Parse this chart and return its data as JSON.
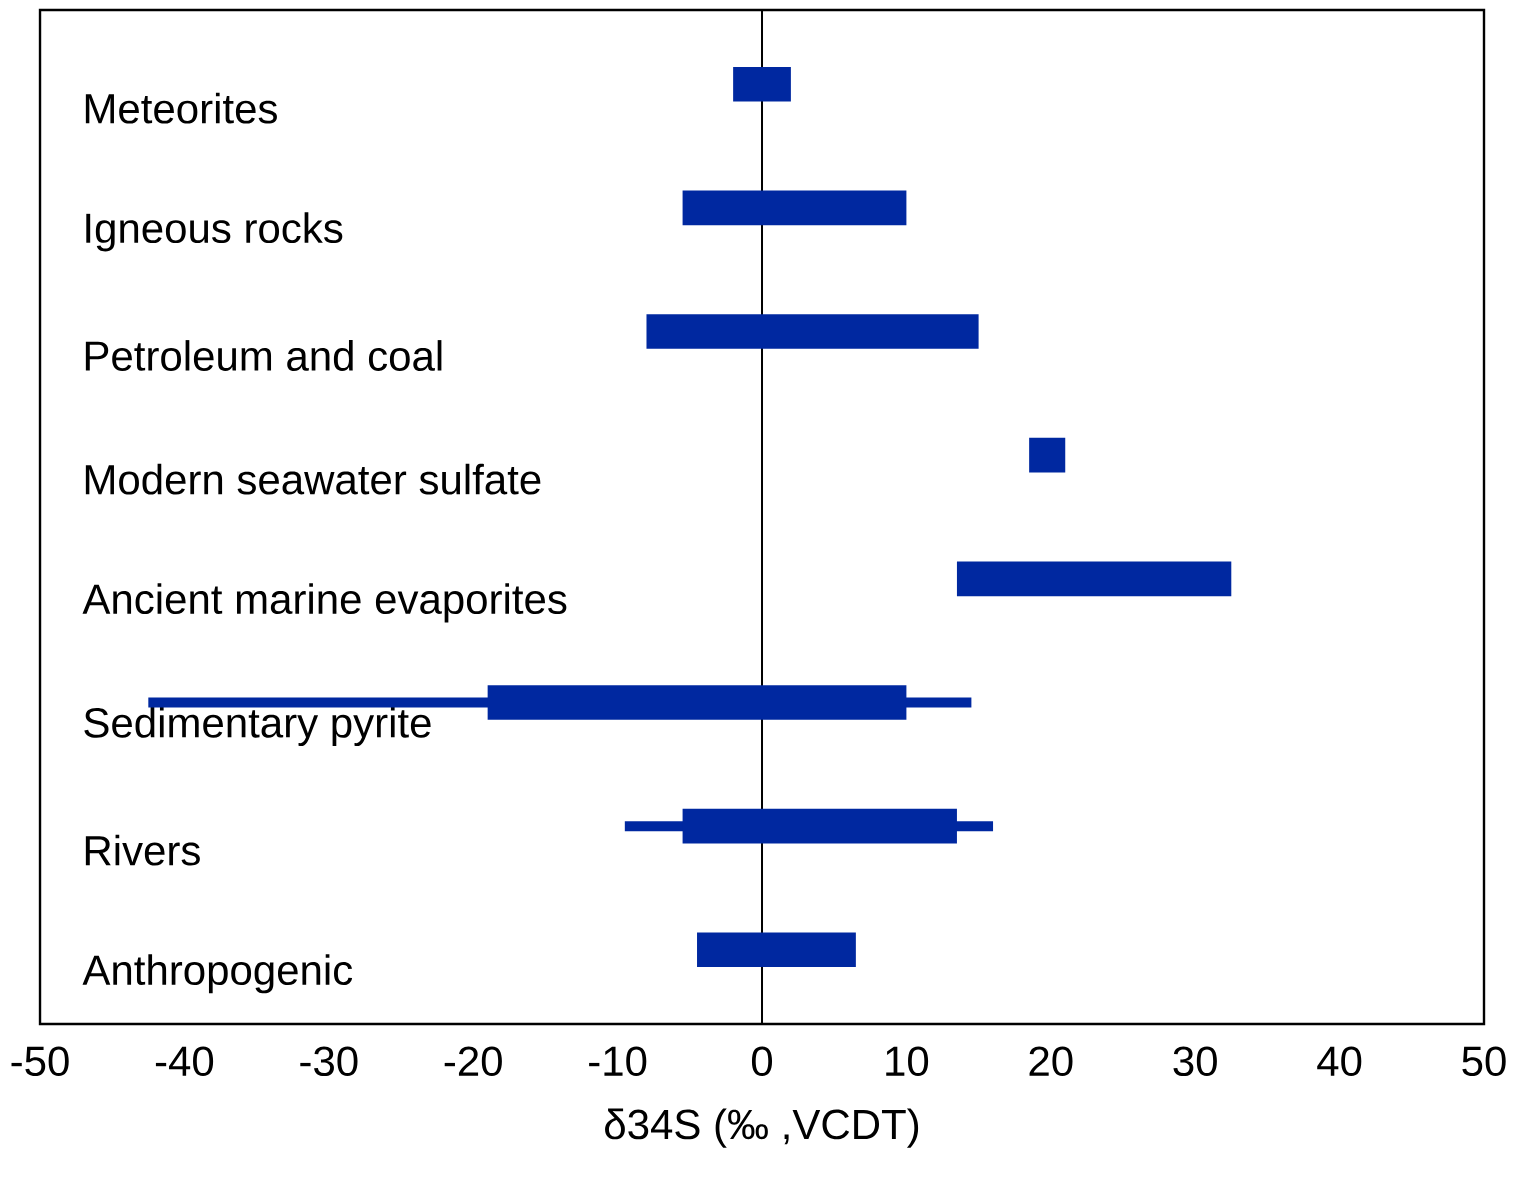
{
  "chart_data": {
    "type": "bar",
    "orientation": "horizontal",
    "xlabel": "δ34S (‰ ,VCDT)",
    "categories": [
      "Meteorites",
      "Igneous rocks",
      "Petroleum and coal",
      "Modern seawater sulfate",
      "Ancient marine evaporites",
      "Sedimentary pyrite",
      "Rivers",
      "Anthropogenic"
    ],
    "base": [
      -2,
      -5.5,
      -8,
      18.5,
      13.5,
      -19,
      -5.5,
      -4.5
    ],
    "values": [
      4,
      15.5,
      23,
      2.5,
      19,
      29,
      19,
      11
    ],
    "errors": [
      null,
      null,
      null,
      null,
      null,
      [
        -42.5,
        14.5
      ],
      [
        -9.5,
        16
      ],
      null
    ],
    "color": "#0028a0",
    "xlim": [
      -50,
      50
    ],
    "xticks": [
      -50,
      -40,
      -30,
      -20,
      -10,
      0,
      10,
      20,
      30,
      40,
      50
    ],
    "ref_lines": [
      {
        "axis": "x",
        "value": 0,
        "color": "#000000"
      }
    ],
    "grid": false
  }
}
